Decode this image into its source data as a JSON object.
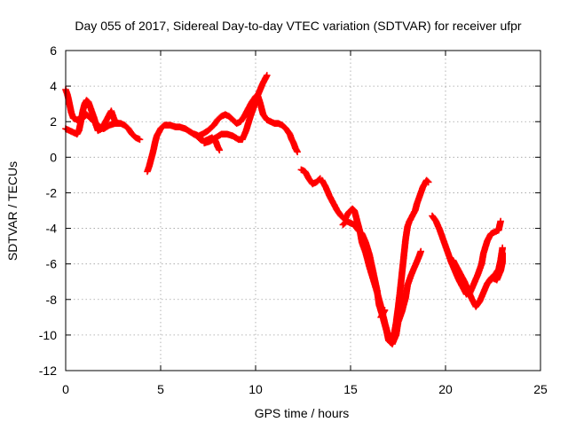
{
  "chart_data": {
    "type": "scatter",
    "title": "Day 055 of 2017, Sidereal Day-to-day VTEC variation (SDTVAR) for receiver ufpr",
    "xlabel": "GPS time / hours",
    "ylabel": "SDTVAR / TECUs",
    "xlim": [
      0,
      25
    ],
    "ylim": [
      -12,
      6
    ],
    "xticks": [
      "0",
      "5",
      "10",
      "15",
      "20",
      "25"
    ],
    "yticks": [
      "-12",
      "-10",
      "-8",
      "-6",
      "-4",
      "-2",
      "0",
      "2",
      "4",
      "6"
    ],
    "grid": true,
    "legend": "none",
    "marker": "plus",
    "colors": {
      "series": "#ff0000"
    },
    "series": [
      {
        "segments": [
          [
            [
              0.0,
              3.8
            ],
            [
              0.1,
              3.5
            ],
            [
              0.2,
              3.0
            ],
            [
              0.3,
              2.5
            ],
            [
              0.4,
              2.2
            ],
            [
              0.6,
              2.1
            ],
            [
              0.8,
              2.2
            ],
            [
              1.0,
              2.3
            ],
            [
              1.1,
              2.4
            ],
            [
              1.3,
              2.2
            ],
            [
              1.5,
              2.0
            ],
            [
              1.8,
              1.7
            ],
            [
              2.0,
              1.6
            ],
            [
              2.3,
              1.8
            ],
            [
              2.6,
              1.9
            ],
            [
              2.9,
              1.9
            ],
            [
              3.1,
              1.8
            ],
            [
              3.3,
              1.6
            ],
            [
              3.5,
              1.3
            ],
            [
              3.7,
              1.1
            ],
            [
              3.9,
              1.0
            ]
          ],
          [
            [
              0.0,
              1.6
            ],
            [
              0.2,
              1.5
            ],
            [
              0.4,
              1.4
            ],
            [
              0.6,
              1.3
            ],
            [
              0.7,
              1.5
            ],
            [
              0.8,
              2.0
            ],
            [
              0.9,
              2.6
            ],
            [
              1.0,
              3.0
            ],
            [
              1.1,
              3.2
            ],
            [
              1.2,
              3.1
            ],
            [
              1.3,
              2.8
            ],
            [
              1.4,
              2.5
            ],
            [
              1.5,
              2.2
            ],
            [
              1.6,
              1.8
            ],
            [
              1.7,
              1.5
            ],
            [
              1.9,
              1.6
            ],
            [
              2.1,
              2.0
            ],
            [
              2.3,
              2.4
            ],
            [
              2.4,
              2.6
            ],
            [
              2.5,
              2.3
            ],
            [
              2.6,
              2.0
            ],
            [
              2.8,
              1.9
            ]
          ],
          [
            [
              4.3,
              -0.8
            ],
            [
              4.4,
              -0.5
            ],
            [
              4.5,
              -0.1
            ],
            [
              4.6,
              0.3
            ],
            [
              4.7,
              0.8
            ],
            [
              4.8,
              1.2
            ],
            [
              5.0,
              1.6
            ],
            [
              5.2,
              1.8
            ],
            [
              5.5,
              1.8
            ],
            [
              5.8,
              1.7
            ],
            [
              6.0,
              1.7
            ],
            [
              6.3,
              1.6
            ],
            [
              6.6,
              1.4
            ],
            [
              6.9,
              1.2
            ],
            [
              7.1,
              1.0
            ],
            [
              7.3,
              0.9
            ],
            [
              7.5,
              1.0
            ],
            [
              7.7,
              1.1
            ],
            [
              7.9,
              0.9
            ],
            [
              8.0,
              0.6
            ],
            [
              8.1,
              0.4
            ]
          ],
          [
            [
              6.8,
              1.3
            ],
            [
              7.0,
              1.2
            ],
            [
              7.2,
              1.3
            ],
            [
              7.5,
              1.5
            ],
            [
              7.8,
              1.8
            ],
            [
              8.0,
              2.1
            ],
            [
              8.2,
              2.3
            ],
            [
              8.4,
              2.4
            ],
            [
              8.6,
              2.3
            ],
            [
              8.8,
              2.1
            ],
            [
              9.0,
              1.9
            ],
            [
              9.2,
              2.0
            ],
            [
              9.4,
              2.3
            ],
            [
              9.6,
              2.7
            ],
            [
              9.8,
              3.1
            ],
            [
              10.0,
              3.4
            ],
            [
              10.1,
              3.5
            ],
            [
              10.2,
              3.2
            ],
            [
              10.3,
              2.8
            ],
            [
              10.4,
              2.4
            ],
            [
              10.6,
              2.1
            ],
            [
              10.8,
              2.0
            ],
            [
              11.0,
              1.9
            ],
            [
              11.2,
              1.9
            ],
            [
              11.4,
              1.8
            ],
            [
              11.6,
              1.6
            ],
            [
              11.8,
              1.3
            ],
            [
              11.9,
              1.0
            ],
            [
              12.0,
              0.8
            ],
            [
              12.1,
              0.5
            ],
            [
              12.2,
              0.3
            ]
          ],
          [
            [
              7.3,
              0.8
            ],
            [
              7.6,
              0.9
            ],
            [
              7.9,
              1.1
            ],
            [
              8.2,
              1.3
            ],
            [
              8.5,
              1.3
            ],
            [
              8.8,
              1.2
            ],
            [
              9.1,
              1.0
            ],
            [
              9.3,
              1.0
            ],
            [
              9.5,
              1.5
            ],
            [
              9.7,
              2.2
            ],
            [
              9.9,
              2.8
            ],
            [
              10.0,
              3.2
            ],
            [
              10.2,
              3.7
            ],
            [
              10.4,
              4.2
            ],
            [
              10.6,
              4.6
            ]
          ],
          [
            [
              12.4,
              -0.7
            ],
            [
              12.6,
              -0.8
            ],
            [
              12.8,
              -1.2
            ],
            [
              13.0,
              -1.5
            ],
            [
              13.2,
              -1.4
            ],
            [
              13.4,
              -1.2
            ]
          ],
          [
            [
              13.5,
              -1.3
            ],
            [
              13.7,
              -1.7
            ],
            [
              13.9,
              -2.2
            ],
            [
              14.1,
              -2.6
            ],
            [
              14.3,
              -3.0
            ],
            [
              14.5,
              -3.3
            ],
            [
              14.7,
              -3.5
            ],
            [
              14.8,
              -3.3
            ],
            [
              14.9,
              -3.1
            ],
            [
              15.0,
              -3.0
            ],
            [
              15.1,
              -2.9
            ],
            [
              15.2,
              -3.0
            ],
            [
              15.3,
              -3.4
            ],
            [
              15.4,
              -3.8
            ],
            [
              15.5,
              -4.2
            ],
            [
              15.6,
              -4.8
            ],
            [
              15.8,
              -5.4
            ],
            [
              16.0,
              -6.2
            ],
            [
              16.2,
              -6.9
            ],
            [
              16.4,
              -7.6
            ],
            [
              16.6,
              -8.4
            ],
            [
              16.8,
              -9.3
            ],
            [
              17.0,
              -10.1
            ],
            [
              17.1,
              -10.4
            ],
            [
              17.2,
              -10.3
            ],
            [
              17.3,
              -9.9
            ],
            [
              17.4,
              -9.3
            ],
            [
              17.5,
              -8.5
            ],
            [
              17.6,
              -7.6
            ],
            [
              17.7,
              -6.6
            ],
            [
              17.8,
              -5.6
            ],
            [
              17.9,
              -4.6
            ],
            [
              18.0,
              -3.9
            ],
            [
              18.1,
              -3.6
            ],
            [
              18.2,
              -3.4
            ],
            [
              18.3,
              -3.2
            ],
            [
              18.4,
              -3.0
            ],
            [
              18.5,
              -2.6
            ],
            [
              18.6,
              -2.3
            ],
            [
              18.7,
              -2.0
            ],
            [
              18.8,
              -1.7
            ],
            [
              18.9,
              -1.5
            ],
            [
              19.0,
              -1.3
            ],
            [
              19.1,
              -1.4
            ]
          ],
          [
            [
              14.6,
              -3.8
            ],
            [
              14.8,
              -3.6
            ],
            [
              15.0,
              -3.7
            ],
            [
              15.2,
              -3.8
            ],
            [
              15.4,
              -4.1
            ],
            [
              15.6,
              -4.3
            ],
            [
              15.8,
              -4.8
            ],
            [
              16.0,
              -5.5
            ],
            [
              16.2,
              -6.5
            ],
            [
              16.4,
              -7.5
            ],
            [
              16.5,
              -8.3
            ],
            [
              16.7,
              -9.0
            ],
            [
              16.9,
              -9.8
            ],
            [
              17.0,
              -10.3
            ],
            [
              17.2,
              -10.5
            ],
            [
              17.4,
              -10.0
            ],
            [
              17.5,
              -9.3
            ],
            [
              17.7,
              -8.7
            ],
            [
              17.9,
              -7.9
            ],
            [
              18.0,
              -7.2
            ],
            [
              18.2,
              -6.6
            ],
            [
              18.4,
              -6.1
            ],
            [
              18.6,
              -5.6
            ],
            [
              18.7,
              -5.3
            ]
          ],
          [
            [
              16.6,
              -9.0
            ],
            [
              16.8,
              -8.6
            ]
          ],
          [
            [
              19.3,
              -3.3
            ],
            [
              19.5,
              -3.6
            ],
            [
              19.7,
              -4.1
            ],
            [
              19.9,
              -4.7
            ],
            [
              20.1,
              -5.3
            ],
            [
              20.3,
              -5.9
            ],
            [
              20.5,
              -6.4
            ],
            [
              20.7,
              -6.9
            ],
            [
              20.9,
              -7.3
            ],
            [
              21.1,
              -7.7
            ],
            [
              21.3,
              -7.6
            ],
            [
              21.5,
              -7.1
            ],
            [
              21.7,
              -6.6
            ],
            [
              21.9,
              -6.0
            ],
            [
              22.0,
              -5.4
            ],
            [
              22.2,
              -4.7
            ],
            [
              22.4,
              -4.3
            ],
            [
              22.6,
              -4.2
            ],
            [
              22.8,
              -4.1
            ],
            [
              22.9,
              -3.6
            ]
          ],
          [
            [
              20.4,
              -5.8
            ],
            [
              20.7,
              -6.4
            ],
            [
              21.0,
              -7.0
            ],
            [
              21.2,
              -7.5
            ],
            [
              21.4,
              -8.0
            ],
            [
              21.6,
              -8.4
            ],
            [
              21.8,
              -8.1
            ],
            [
              22.0,
              -7.6
            ],
            [
              22.2,
              -7.1
            ],
            [
              22.4,
              -6.8
            ],
            [
              22.6,
              -6.6
            ],
            [
              22.8,
              -6.3
            ],
            [
              22.9,
              -5.8
            ],
            [
              23.0,
              -5.1
            ]
          ],
          [
            [
              22.3,
              -7.0
            ],
            [
              22.5,
              -6.8
            ],
            [
              22.7,
              -6.9
            ],
            [
              22.9,
              -6.4
            ],
            [
              23.0,
              -5.9
            ],
            [
              23.0,
              -5.4
            ]
          ]
        ]
      }
    ]
  }
}
